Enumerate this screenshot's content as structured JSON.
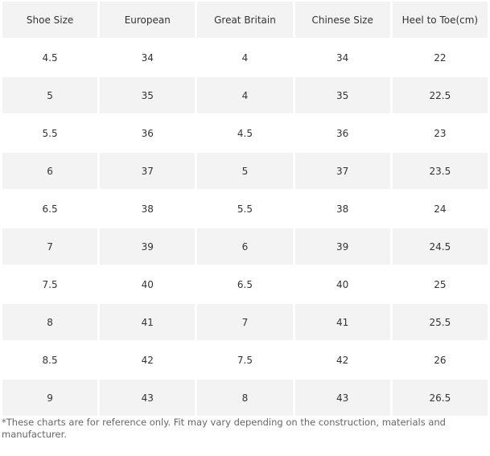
{
  "table": {
    "header": [
      "Shoe Size",
      "European",
      "Great Britain",
      "Chinese Size",
      "Heel to Toe(cm)"
    ],
    "rows": [
      [
        "4.5",
        "34",
        "4",
        "34",
        "22"
      ],
      [
        "5",
        "35",
        "4",
        "35",
        "22.5"
      ],
      [
        "5.5",
        "36",
        "4.5",
        "36",
        "23"
      ],
      [
        "6",
        "37",
        "5",
        "37",
        "23.5"
      ],
      [
        "6.5",
        "38",
        "5.5",
        "38",
        "24"
      ],
      [
        "7",
        "39",
        "6",
        "39",
        "24.5"
      ],
      [
        "7.5",
        "40",
        "6.5",
        "40",
        "25"
      ],
      [
        "8",
        "41",
        "7",
        "41",
        "25.5"
      ],
      [
        "8.5",
        "42",
        "7.5",
        "42",
        "26"
      ],
      [
        "9",
        "43",
        "8",
        "43",
        "26.5"
      ]
    ]
  },
  "footnote": "*These charts are for reference only. Fit may vary depending on the construction, materials and manufacturer."
}
